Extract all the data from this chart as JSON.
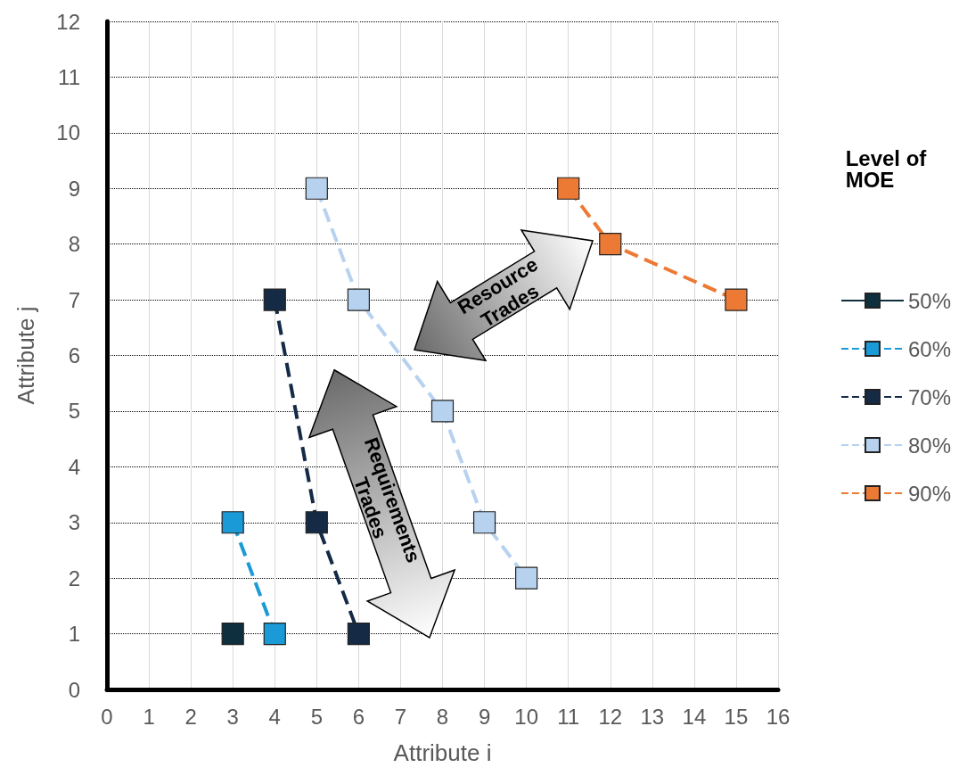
{
  "chart_data": {
    "type": "line",
    "xlabel": "Attribute i",
    "ylabel": "Attribute j",
    "legend_title": "Level of MOE",
    "xlim": [
      0,
      16
    ],
    "xticks": [
      0,
      1,
      2,
      3,
      4,
      5,
      6,
      7,
      8,
      9,
      10,
      11,
      12,
      13,
      14,
      15,
      16
    ],
    "ylim": [
      0,
      12
    ],
    "yticks": [
      0,
      1,
      2,
      3,
      4,
      5,
      6,
      7,
      8,
      9,
      10,
      11,
      12
    ],
    "grid": true,
    "legend": "right",
    "marker": "square",
    "series": [
      {
        "name": "50%",
        "color": "#0e2f3d",
        "line_style": "solid",
        "x": [
          3
        ],
        "values": [
          1
        ]
      },
      {
        "name": "60%",
        "color": "#1a9ad6",
        "line_style": "dashed",
        "x": [
          3,
          4
        ],
        "values": [
          3,
          1
        ]
      },
      {
        "name": "70%",
        "color": "#142a45",
        "line_style": "dashed",
        "x": [
          4,
          5,
          6
        ],
        "values": [
          7,
          3,
          1
        ]
      },
      {
        "name": "80%",
        "color": "#b7d2ef",
        "line_style": "dashed",
        "x": [
          5,
          6,
          8,
          9,
          10
        ],
        "values": [
          9,
          7,
          5,
          3,
          2
        ]
      },
      {
        "name": "90%",
        "color": "#ec7a35",
        "line_style": "dashed",
        "x": [
          11,
          12,
          15
        ],
        "values": [
          9,
          8,
          7
        ]
      }
    ],
    "annotations": [
      "Resource Trades",
      "Requirements Trades"
    ]
  }
}
